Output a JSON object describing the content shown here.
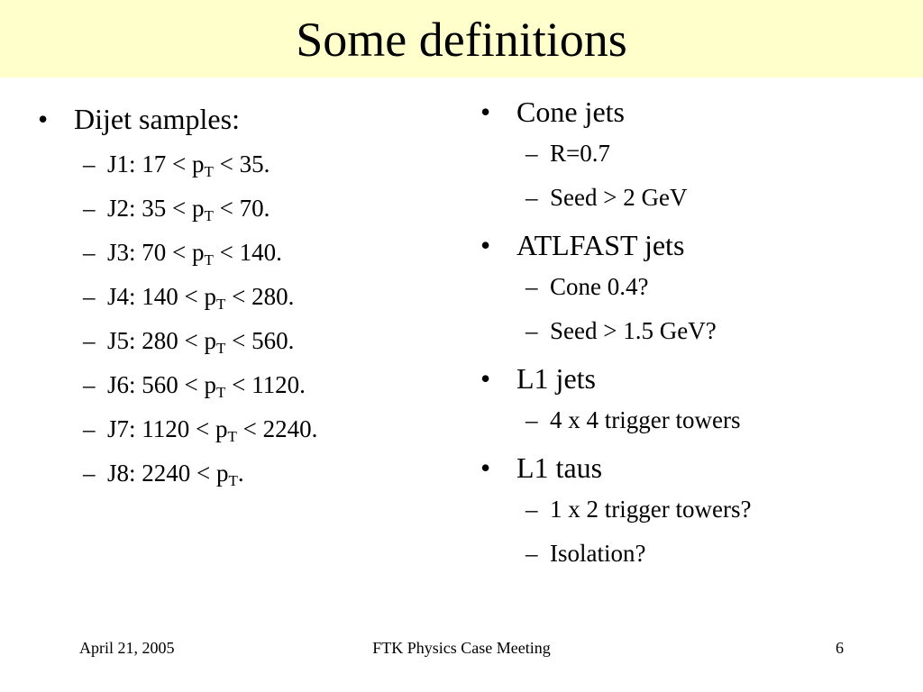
{
  "slide": {
    "title": "Some definitions",
    "bullet_char": "•",
    "dash_char": "–"
  },
  "left": {
    "heading": "Dijet samples:",
    "items": [
      {
        "pre": "J1: 17 < p",
        "sub": "T",
        "post": " < 35."
      },
      {
        "pre": "J2: 35 < p",
        "sub": "T",
        "post": " < 70."
      },
      {
        "pre": "J3: 70 < p",
        "sub": "T",
        "post": " < 140."
      },
      {
        "pre": "J4: 140 < p",
        "sub": "T",
        "post": " < 280."
      },
      {
        "pre": "J5: 280 < p",
        "sub": "T",
        "post": " < 560."
      },
      {
        "pre": "J6: 560 < p",
        "sub": "T",
        "post": " < 1120."
      },
      {
        "pre": "J7: 1120 < p",
        "sub": "T",
        "post": " < 2240."
      },
      {
        "pre": "J8: 2240 < p",
        "sub": "T",
        "post": "."
      }
    ]
  },
  "right": {
    "groups": [
      {
        "heading": "Cone jets",
        "items": [
          "R=0.7",
          "Seed > 2 GeV"
        ]
      },
      {
        "heading": "ATLFAST jets",
        "items": [
          "Cone 0.4?",
          "Seed > 1.5 GeV?"
        ]
      },
      {
        "heading": "L1 jets",
        "items": [
          "4 x 4 trigger towers"
        ]
      },
      {
        "heading": "L1 taus",
        "items": [
          "1 x 2 trigger towers?",
          "Isolation?"
        ]
      }
    ]
  },
  "footer": {
    "date": "April 21, 2005",
    "meeting": "FTK Physics Case Meeting",
    "page": "6"
  }
}
